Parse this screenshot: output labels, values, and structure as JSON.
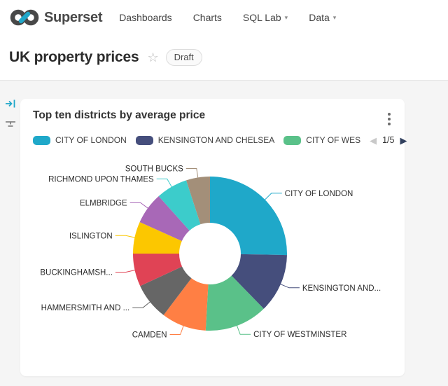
{
  "header": {
    "brand": "Superset",
    "nav": [
      {
        "label": "Dashboards",
        "has_caret": false
      },
      {
        "label": "Charts",
        "has_caret": false
      },
      {
        "label": "SQL Lab",
        "has_caret": true
      },
      {
        "label": "Data",
        "has_caret": true
      }
    ]
  },
  "dashboard": {
    "title": "UK property prices",
    "status_badge": "Draft"
  },
  "chart_card": {
    "title": "Top ten districts by average price",
    "legend": {
      "visible_items": [
        {
          "label": "CITY OF LONDON",
          "color": "#1FA8C9"
        },
        {
          "label": "KENSINGTON AND CHELSEA",
          "color": "#454E7C"
        },
        {
          "label": "CITY OF WES",
          "color": "#5AC189"
        }
      ],
      "pagination": {
        "current": "1/5"
      }
    }
  },
  "chart_data": {
    "type": "pie",
    "donut": true,
    "title": "Top ten districts by average price",
    "legend_position": "top",
    "values_unit": "percent share of total, estimated from arc angles",
    "categories": [
      "CITY OF LONDON",
      "KENSINGTON AND CHELSEA",
      "CITY OF WESTMINSTER",
      "CAMDEN",
      "HAMMERSMITH AND ...",
      "BUCKINGHAMSH...",
      "ISLINGTON",
      "ELMBRIDGE",
      "RICHMOND UPON THAMES",
      "SOUTH BUCKS"
    ],
    "slice_labels": [
      "CITY OF LONDON",
      "KENSINGTON AND...",
      "CITY OF WESTMINSTER",
      "CAMDEN",
      "HAMMERSMITH AND ...",
      "BUCKINGHAMSH...",
      "ISLINGTON",
      "ELMBRIDGE",
      "RICHMOND UPON THAMES",
      "SOUTH BUCKS"
    ],
    "values": [
      25.3,
      12.4,
      13.2,
      9.4,
      7.8,
      6.9,
      6.7,
      6.7,
      6.6,
      5.0
    ],
    "colors": [
      "#1FA8C9",
      "#454E7C",
      "#5AC189",
      "#FF7F44",
      "#666666",
      "#E04355",
      "#FCC700",
      "#A868B7",
      "#3CCCCB",
      "#A38F79"
    ]
  },
  "icons": {
    "star": "☆",
    "page_prev": "◀",
    "page_next": "▶",
    "caret_down": "▾"
  },
  "colors": {
    "brand_teal": "#20A7C9",
    "logo_gray": "#484848",
    "page_background": "#f5f5f5"
  }
}
